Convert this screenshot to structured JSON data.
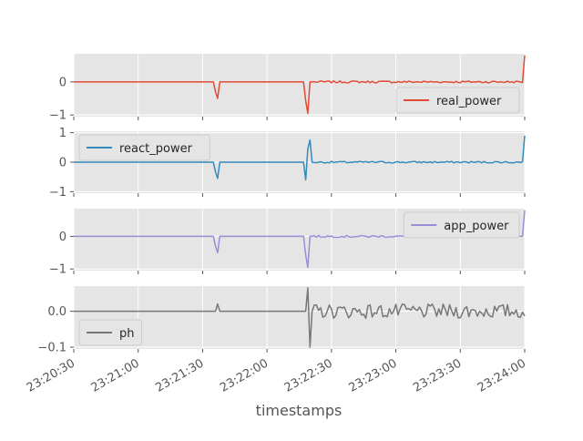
{
  "chart_data": {
    "type": "line",
    "xlabel": "timestamps",
    "x_tick_labels": [
      "23:20:30",
      "23:21:00",
      "23:21:30",
      "23:22:00",
      "23:22:30",
      "23:23:00",
      "23:23:30",
      "23:24:00"
    ],
    "x_range": [
      "23:20:30",
      "23:24:00"
    ],
    "grid": true,
    "panels": [
      {
        "series": [
          {
            "name": "real_power",
            "color": "#E24A33"
          }
        ],
        "ylim": [
          -1.05,
          0.85
        ],
        "yticks": [
          "0",
          "−1"
        ],
        "legend": "bottom-right",
        "events": [
          {
            "time": "23:21:37",
            "value": -0.5
          },
          {
            "time": "23:22:19",
            "value": -0.95
          },
          {
            "time": "23:24:00",
            "value": 0.8
          }
        ]
      },
      {
        "series": [
          {
            "name": "react_power",
            "color": "#348ABD"
          }
        ],
        "ylim": [
          -1.05,
          1.05
        ],
        "yticks": [
          "1",
          "0",
          "−1"
        ],
        "legend": "top-left",
        "events": [
          {
            "time": "23:21:37",
            "value": -0.55
          },
          {
            "time": "23:22:19",
            "value": -1.0
          },
          {
            "time": "23:22:20",
            "value": 0.75
          },
          {
            "time": "23:24:00",
            "value": 0.9
          }
        ]
      },
      {
        "series": [
          {
            "name": "app_power",
            "color": "#988ED5"
          }
        ],
        "ylim": [
          -1.05,
          0.85
        ],
        "yticks": [
          "0",
          "−1"
        ],
        "legend": "top-right",
        "events": [
          {
            "time": "23:21:37",
            "value": -0.5
          },
          {
            "time": "23:22:19",
            "value": -0.95
          },
          {
            "time": "23:24:00",
            "value": 0.8
          }
        ]
      },
      {
        "series": [
          {
            "name": "ph",
            "color": "#777777"
          }
        ],
        "ylim": [
          -0.105,
          0.07
        ],
        "yticks": [
          "0.0",
          "−0.1"
        ],
        "legend": "bottom-left",
        "events": [
          {
            "time": "23:21:37",
            "value": 0.02
          },
          {
            "time": "23:22:19",
            "value": 0.065
          },
          {
            "time": "23:22:20",
            "value": -0.1
          }
        ]
      }
    ]
  }
}
